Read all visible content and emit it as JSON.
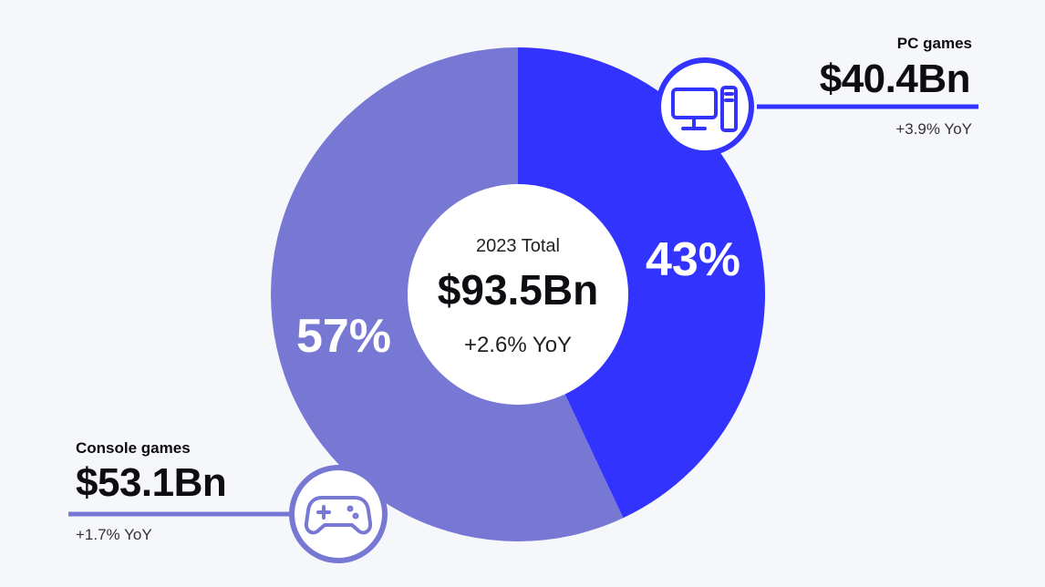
{
  "chart_data": {
    "type": "pie",
    "variant": "donut",
    "center": {
      "caption": "2023 Total",
      "value": "$93.5Bn",
      "yoy": "+2.6% YoY"
    },
    "slices": [
      {
        "name": "PC games",
        "share": 43,
        "share_label": "43%",
        "value": 40.4,
        "value_label": "$40.4Bn",
        "yoy": "+3.9% YoY",
        "color": "#3333ff",
        "icon": "desktop-computer-icon"
      },
      {
        "name": "Console games",
        "share": 57,
        "share_label": "57%",
        "value": 53.1,
        "value_label": "$53.1Bn",
        "yoy": "+1.7% YoY",
        "color": "#7777d4",
        "icon": "gamepad-icon"
      }
    ]
  },
  "colors": {
    "background": "#f6f7fb",
    "center_circle": "#ffffff",
    "text": "#0d0d12",
    "slice_label": "#ffffff"
  }
}
